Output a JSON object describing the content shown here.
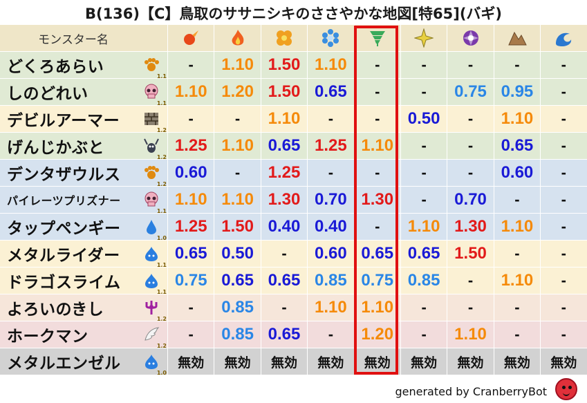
{
  "title": "B(136)【C】鳥取のササニシキのささやかな地図[特65](バギ)",
  "header_label": "モンスター名",
  "elements": [
    {
      "name": "fire-ball-icon",
      "color": "#e8481a"
    },
    {
      "name": "flame-icon",
      "color": "#f06020"
    },
    {
      "name": "explosion-icon",
      "color": "#f0a020"
    },
    {
      "name": "ice-crystal-icon",
      "color": "#3a8ee0"
    },
    {
      "name": "tornado-icon",
      "color": "#3aaa5a"
    },
    {
      "name": "lightning-icon",
      "color": "#e8d040"
    },
    {
      "name": "dark-vortex-icon",
      "color": "#7a3aaa"
    },
    {
      "name": "rock-icon",
      "color": "#a87a4a"
    },
    {
      "name": "wave-icon",
      "color": "#2a78d0"
    }
  ],
  "colors": {
    "orange": "#f58a0a",
    "red": "#e21a1a",
    "blue": "#1a1ad6",
    "sky": "#2a86e6",
    "highlight": "#e01010"
  },
  "rows": [
    {
      "name": "どくろあらい",
      "bg": "green",
      "icon": "paw-icon",
      "ver": "1.1",
      "values": [
        [
          "-",
          "dash"
        ],
        [
          "1.10",
          "orange"
        ],
        [
          "1.50",
          "red"
        ],
        [
          "1.10",
          "orange"
        ],
        [
          "-",
          "dash"
        ],
        [
          "-",
          "dash"
        ],
        [
          "-",
          "dash"
        ],
        [
          "-",
          "dash"
        ],
        [
          "-",
          "dash"
        ]
      ]
    },
    {
      "name": "しのどれい",
      "bg": "green",
      "icon": "skull-icon",
      "ver": "1.1",
      "values": [
        [
          "1.10",
          "orange"
        ],
        [
          "1.20",
          "orange"
        ],
        [
          "1.50",
          "red"
        ],
        [
          "0.65",
          "blue"
        ],
        [
          "-",
          "dash"
        ],
        [
          "-",
          "dash"
        ],
        [
          "0.75",
          "sky"
        ],
        [
          "0.95",
          "sky"
        ],
        [
          "-",
          "dash"
        ]
      ]
    },
    {
      "name": "デビルアーマー",
      "bg": "cream",
      "icon": "brick-icon",
      "ver": "1.2",
      "values": [
        [
          "-",
          "dash"
        ],
        [
          "-",
          "dash"
        ],
        [
          "1.10",
          "orange"
        ],
        [
          "-",
          "dash"
        ],
        [
          "-",
          "dash"
        ],
        [
          "0.50",
          "blue"
        ],
        [
          "-",
          "dash"
        ],
        [
          "1.10",
          "orange"
        ],
        [
          "-",
          "dash"
        ]
      ]
    },
    {
      "name": "げんじかぶと",
      "bg": "green",
      "icon": "bug-icon",
      "ver": "1.2",
      "values": [
        [
          "1.25",
          "red"
        ],
        [
          "1.10",
          "orange"
        ],
        [
          "0.65",
          "blue"
        ],
        [
          "1.25",
          "red"
        ],
        [
          "1.10",
          "orange"
        ],
        [
          "-",
          "dash"
        ],
        [
          "-",
          "dash"
        ],
        [
          "0.65",
          "blue"
        ],
        [
          "-",
          "dash"
        ]
      ]
    },
    {
      "name": "デンタザウルス",
      "bg": "blue",
      "icon": "paw-icon",
      "ver": "1.2",
      "values": [
        [
          "0.60",
          "blue"
        ],
        [
          "-",
          "dash"
        ],
        [
          "1.25",
          "red"
        ],
        [
          "-",
          "dash"
        ],
        [
          "-",
          "dash"
        ],
        [
          "-",
          "dash"
        ],
        [
          "-",
          "dash"
        ],
        [
          "0.60",
          "blue"
        ],
        [
          "-",
          "dash"
        ]
      ]
    },
    {
      "name": "パイレーツプリズナー",
      "bg": "blue",
      "icon": "skull-icon",
      "ver": "1.1",
      "small": true,
      "values": [
        [
          "1.10",
          "orange"
        ],
        [
          "1.10",
          "orange"
        ],
        [
          "1.30",
          "red"
        ],
        [
          "0.70",
          "blue"
        ],
        [
          "1.30",
          "red"
        ],
        [
          "-",
          "dash"
        ],
        [
          "0.70",
          "blue"
        ],
        [
          "-",
          "dash"
        ],
        [
          "-",
          "dash"
        ]
      ]
    },
    {
      "name": "タップペンギー",
      "bg": "blue",
      "icon": "drop-icon",
      "ver": "1.0",
      "values": [
        [
          "1.25",
          "red"
        ],
        [
          "1.50",
          "red"
        ],
        [
          "0.40",
          "blue"
        ],
        [
          "0.40",
          "blue"
        ],
        [
          "-",
          "dash"
        ],
        [
          "1.10",
          "orange"
        ],
        [
          "1.30",
          "red"
        ],
        [
          "1.10",
          "orange"
        ],
        [
          "-",
          "dash"
        ]
      ]
    },
    {
      "name": "メタルライダー",
      "bg": "cream",
      "icon": "slime-icon",
      "ver": "1.1",
      "values": [
        [
          "0.65",
          "blue"
        ],
        [
          "0.50",
          "blue"
        ],
        [
          "-",
          "dash"
        ],
        [
          "0.60",
          "blue"
        ],
        [
          "0.65",
          "blue"
        ],
        [
          "0.65",
          "blue"
        ],
        [
          "1.50",
          "red"
        ],
        [
          "-",
          "dash"
        ],
        [
          "-",
          "dash"
        ]
      ]
    },
    {
      "name": "ドラゴスライム",
      "bg": "cream",
      "icon": "slime-icon",
      "ver": "1.1",
      "values": [
        [
          "0.75",
          "sky"
        ],
        [
          "0.65",
          "blue"
        ],
        [
          "0.65",
          "blue"
        ],
        [
          "0.85",
          "sky"
        ],
        [
          "0.75",
          "sky"
        ],
        [
          "0.85",
          "sky"
        ],
        [
          "-",
          "dash"
        ],
        [
          "1.10",
          "orange"
        ],
        [
          "-",
          "dash"
        ]
      ]
    },
    {
      "name": "よろいのきし",
      "bg": "peach",
      "icon": "trident-icon",
      "ver": "1.2",
      "values": [
        [
          "-",
          "dash"
        ],
        [
          "0.85",
          "sky"
        ],
        [
          "-",
          "dash"
        ],
        [
          "1.10",
          "orange"
        ],
        [
          "1.10",
          "orange"
        ],
        [
          "-",
          "dash"
        ],
        [
          "-",
          "dash"
        ],
        [
          "-",
          "dash"
        ],
        [
          "-",
          "dash"
        ]
      ]
    },
    {
      "name": "ホークマン",
      "bg": "pink",
      "icon": "wing-icon",
      "ver": "1.2",
      "values": [
        [
          "-",
          "dash"
        ],
        [
          "0.85",
          "sky"
        ],
        [
          "0.65",
          "blue"
        ],
        [
          "-",
          "dash"
        ],
        [
          "1.20",
          "orange"
        ],
        [
          "-",
          "dash"
        ],
        [
          "1.10",
          "orange"
        ],
        [
          "-",
          "dash"
        ],
        [
          "-",
          "dash"
        ]
      ]
    },
    {
      "name": "メタルエンゼル",
      "bg": "gray",
      "icon": "slime-icon",
      "ver": "1.0",
      "values": [
        [
          "無効",
          "mu"
        ],
        [
          "無効",
          "mu"
        ],
        [
          "無効",
          "mu"
        ],
        [
          "無効",
          "mu"
        ],
        [
          "無効",
          "mu"
        ],
        [
          "無効",
          "mu"
        ],
        [
          "無効",
          "mu"
        ],
        [
          "無効",
          "mu"
        ],
        [
          "無効",
          "mu"
        ]
      ]
    }
  ],
  "footer": "generated by CranberryBot"
}
